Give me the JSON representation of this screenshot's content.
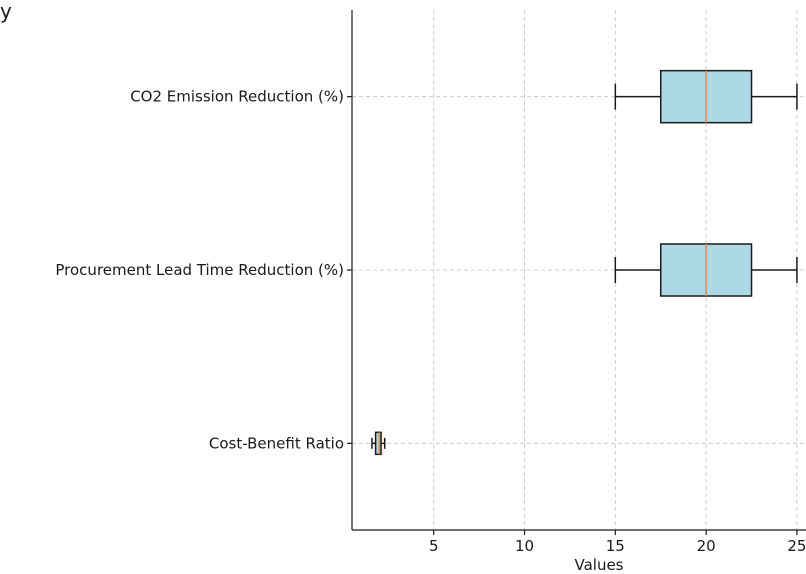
{
  "chart_data": {
    "type": "boxplot",
    "orientation": "horizontal",
    "title": "y",
    "xlabel": "Values",
    "xlim": [
      0.5,
      25.5
    ],
    "xticks": [
      5,
      10,
      15,
      20,
      25
    ],
    "grid": true,
    "colors": {
      "box_fill": "#add8e6",
      "median": "#e8864a",
      "edge": "#1a1a1a",
      "grid": "#cccccc"
    },
    "series": [
      {
        "name": "CO2 Emission Reduction (%)",
        "min": 15,
        "q1": 17.5,
        "median": 20,
        "q3": 22.5,
        "max": 25
      },
      {
        "name": "Procurement Lead Time Reduction (%)",
        "min": 15,
        "q1": 17.5,
        "median": 20,
        "q3": 22.5,
        "max": 25
      },
      {
        "name": "Cost-Benefit Ratio",
        "min": 1.6,
        "q1": 1.8,
        "median": 2.0,
        "q3": 2.1,
        "max": 2.3
      }
    ]
  }
}
